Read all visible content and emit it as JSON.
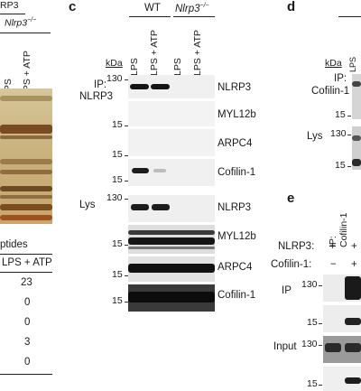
{
  "panel_b": {
    "header_top": "RP3",
    "header_geno": "Nlrp3",
    "header_geno_sup": "−/−",
    "lanes": [
      "LPS",
      "LPS + ATP"
    ],
    "table_header": "ptides",
    "table_sub": "LPS + ATP",
    "table_values": [
      "23",
      "0",
      "0",
      "3",
      "0"
    ]
  },
  "panel_c": {
    "letter": "c",
    "kda": "kDa",
    "wt": "WT",
    "ko": "Nlrp3",
    "ko_sup": "−/−",
    "lanes": [
      "LPS",
      "LPS + ATP",
      "LPS",
      "LPS + ATP"
    ],
    "ip_label_1": "IP:",
    "ip_label_2": "NLRP3",
    "lys_label": "Lys",
    "ip_rows": [
      {
        "marker": "130",
        "protein": "NLRP3"
      },
      {
        "marker": "15",
        "protein": "MYL12b"
      },
      {
        "marker": "15",
        "protein": "ARPC4"
      },
      {
        "marker": "15",
        "protein": "Cofilin-1"
      }
    ],
    "lys_rows": [
      {
        "marker": "130",
        "protein": "NLRP3"
      },
      {
        "marker": "15",
        "protein": "MYL12b"
      },
      {
        "marker": "15",
        "protein": "ARPC4"
      },
      {
        "marker": "15",
        "protein": "Cofilin-1"
      }
    ]
  },
  "panel_d": {
    "letter": "d",
    "kda": "kDa",
    "ip_1": "IP:",
    "ip_2": "Cofilin-1",
    "lys": "Lys",
    "markers": [
      "15",
      "130",
      "15"
    ],
    "lane_partial": "LPS"
  },
  "panel_e": {
    "letter": "e",
    "ip_col_1": "IP:",
    "ip_col_2": "Cofilin-1",
    "nlrp3_label": "NLRP3:",
    "cofilin_label": "Cofilin-1:",
    "nlrp3_signs": [
      "+",
      "+"
    ],
    "cofilin_signs": [
      "−",
      "+"
    ],
    "ip_label": "IP",
    "input_label": "Input",
    "markers": [
      "130",
      "15",
      "130",
      "15"
    ]
  }
}
